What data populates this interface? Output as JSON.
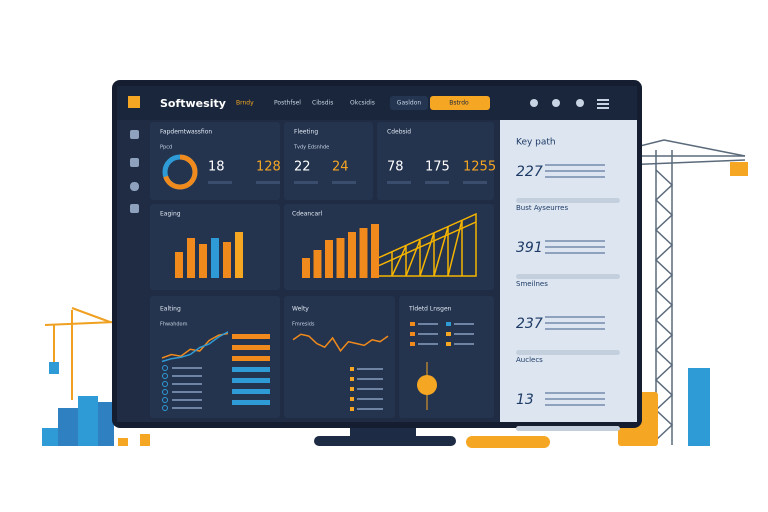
{
  "header": {
    "logo": "Softwesity",
    "nav": [
      "Brndy",
      "Posthfsel",
      "Cibsdis",
      "Okcsidis"
    ],
    "search": "Gasldon",
    "button": "Bstrdo"
  },
  "stat_cards": [
    {
      "title": "Fapdemtwassfion",
      "subtitle": "Ppcd",
      "donut": 70,
      "values": [
        18,
        128
      ]
    },
    {
      "title": "Fleeting",
      "subtitle": "Tvdy Edsnhde",
      "values": [
        22,
        24
      ]
    },
    {
      "title": "Cdebsid",
      "values": [
        78,
        175,
        1255
      ]
    }
  ],
  "bar_charts": [
    {
      "title": "Eaging",
      "values": [
        26,
        40,
        34,
        40,
        36,
        46
      ],
      "colors": [
        "#f08a1c",
        "#f08a1c",
        "#f08a1c",
        "#2f9bd6",
        "#f08a1c",
        "#f5a623"
      ]
    },
    {
      "title": "Cdeancarl",
      "values": [
        20,
        28,
        38,
        40,
        46,
        50,
        54
      ]
    }
  ],
  "line_charts": [
    {
      "title": "Ealting",
      "subtitle": "Fhwahdom",
      "series": [
        [
          20,
          30,
          25,
          45,
          40,
          70,
          85,
          90
        ],
        [
          10,
          18,
          22,
          30,
          50,
          60,
          80,
          95
        ]
      ]
    },
    {
      "title": "Welty",
      "subtitle": "Fmresids",
      "values": [
        60,
        75,
        70,
        50,
        40,
        65,
        30,
        55,
        50,
        45,
        60,
        55,
        70
      ]
    }
  ],
  "legend_card": {
    "title": "Tldetd Lnsgen"
  },
  "side": {
    "title": "Key path",
    "items": [
      {
        "value": 227
      },
      {
        "title": "Bust Ayseurres",
        "value": 391
      },
      {
        "title": "Smeilnes",
        "value": 237
      },
      {
        "title": "Auclecs",
        "value": 13
      }
    ]
  }
}
